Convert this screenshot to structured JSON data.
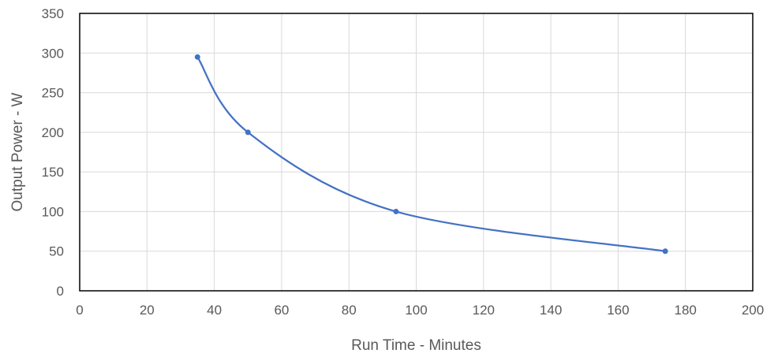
{
  "chart_data": {
    "type": "scatter",
    "title": "",
    "xlabel": "Run Time - Minutes",
    "ylabel": "Output Power  -  W",
    "xlim": [
      0,
      200
    ],
    "ylim": [
      0,
      350
    ],
    "x_ticks": [
      0,
      20,
      40,
      60,
      80,
      100,
      120,
      140,
      160,
      180,
      200
    ],
    "y_ticks": [
      0,
      50,
      100,
      150,
      200,
      250,
      300,
      350
    ],
    "grid": true,
    "legend": "none",
    "smooth_line": true,
    "series": [
      {
        "color": "#4472c4",
        "points": [
          {
            "x": 35,
            "y": 295
          },
          {
            "x": 50,
            "y": 200
          },
          {
            "x": 94,
            "y": 100
          },
          {
            "x": 174,
            "y": 50
          }
        ]
      }
    ]
  }
}
